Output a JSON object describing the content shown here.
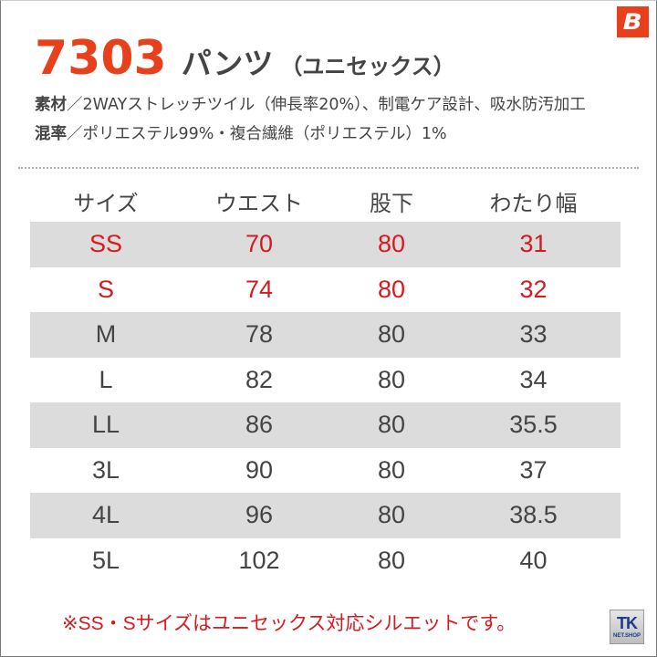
{
  "brand": {
    "logo_letter": "B",
    "logo_color": "#e8401a"
  },
  "title": {
    "model_number": "7303",
    "product_name": "パンツ",
    "subtitle": "（ユニセックス）"
  },
  "specs": [
    {
      "label": "素材",
      "separator": "／",
      "value": "2WAYストレッチツイル（伸長率20%）、制電ケア設計、吸水防汚加工"
    },
    {
      "label": "混率",
      "separator": "／",
      "value": "ポリエステル99%・複合繊維（ポリエステル）1%"
    }
  ],
  "size_table": {
    "headers": [
      "サイズ",
      "ウエスト",
      "股下",
      "わたり幅"
    ],
    "rows": [
      {
        "size": "SS",
        "waist": "70",
        "inseam": "80",
        "thigh": "31",
        "highlight": true
      },
      {
        "size": "S",
        "waist": "74",
        "inseam": "80",
        "thigh": "32",
        "highlight": true
      },
      {
        "size": "M",
        "waist": "78",
        "inseam": "80",
        "thigh": "33",
        "highlight": false
      },
      {
        "size": "L",
        "waist": "82",
        "inseam": "80",
        "thigh": "34",
        "highlight": false
      },
      {
        "size": "LL",
        "waist": "86",
        "inseam": "80",
        "thigh": "35.5",
        "highlight": false
      },
      {
        "size": "3L",
        "waist": "90",
        "inseam": "80",
        "thigh": "37",
        "highlight": false
      },
      {
        "size": "4L",
        "waist": "96",
        "inseam": "80",
        "thigh": "38.5",
        "highlight": false
      },
      {
        "size": "5L",
        "waist": "102",
        "inseam": "80",
        "thigh": "40",
        "highlight": false
      }
    ]
  },
  "note": "※SS・Sサイズはユニセックス対応シルエットです。",
  "shop_badge": {
    "line1": "TK",
    "line2": "NET.SHOP"
  },
  "colors": {
    "accent": "#e8401a",
    "highlight_text": "#d71920",
    "row_shade": "#dcdcdc",
    "text": "#444444"
  }
}
